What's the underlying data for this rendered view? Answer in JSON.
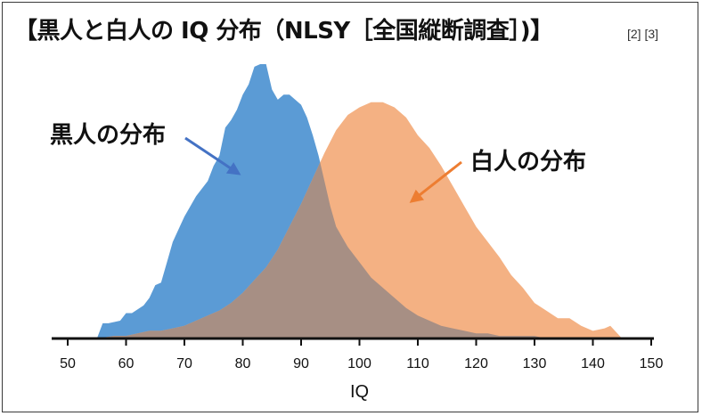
{
  "header": {
    "title": "【黒人と白人の IQ 分布（NLSY［全国縦断調査］)】",
    "references": "[2] [3]"
  },
  "chart_data": {
    "type": "area",
    "xlabel": "IQ",
    "xlim": [
      50,
      150
    ],
    "xticks": [
      50,
      60,
      70,
      80,
      90,
      100,
      110,
      120,
      130,
      140,
      150
    ],
    "yticks_visible": false,
    "grid": false,
    "series": [
      {
        "name": "黒人の分布",
        "color": "#5b9bd5",
        "x": [
          55,
          56,
          57,
          59,
          60,
          61,
          63,
          64,
          65,
          66,
          67,
          68,
          70,
          72,
          74,
          75,
          76,
          77,
          78,
          79,
          80,
          81,
          82,
          83,
          84,
          85,
          86,
          87,
          88,
          90,
          91,
          92,
          93,
          94,
          95,
          96,
          98,
          100,
          102,
          104,
          106,
          108,
          110,
          112,
          114,
          116,
          118,
          120,
          122,
          124,
          126,
          128,
          130,
          132,
          134,
          136,
          138,
          140,
          142,
          145
        ],
        "values": [
          0,
          6,
          6,
          7,
          10,
          10,
          13,
          16,
          21,
          22,
          30,
          38,
          48,
          56,
          62,
          68,
          72,
          83,
          86,
          90,
          96,
          100,
          107,
          108,
          108,
          98,
          94,
          96,
          96,
          92,
          87,
          80,
          72,
          62,
          52,
          44,
          36,
          30,
          24,
          20,
          16,
          12,
          9,
          7,
          5,
          4,
          3,
          2,
          2,
          1,
          1,
          1,
          1,
          0,
          0,
          0,
          0,
          0,
          0,
          0
        ]
      },
      {
        "name": "白人の分布",
        "color": "#f4b183",
        "x": [
          55,
          58,
          60,
          62,
          64,
          66,
          68,
          70,
          72,
          74,
          76,
          78,
          80,
          82,
          84,
          86,
          88,
          90,
          92,
          94,
          96,
          98,
          100,
          102,
          104,
          106,
          108,
          110,
          112,
          114,
          116,
          118,
          120,
          122,
          124,
          126,
          128,
          130,
          132,
          134,
          136,
          138,
          140,
          142,
          143,
          145
        ],
        "values": [
          0,
          1,
          1,
          2,
          3,
          3,
          4,
          5,
          7,
          9,
          11,
          14,
          18,
          23,
          28,
          35,
          44,
          53,
          63,
          73,
          82,
          88,
          91,
          93,
          93,
          91,
          87,
          80,
          75,
          68,
          60,
          52,
          44,
          38,
          32,
          25,
          20,
          14,
          11,
          8,
          8,
          5,
          3,
          4,
          5,
          0
        ]
      }
    ],
    "overlap_color": "#a78f84",
    "annotations": [
      {
        "text": "黒人の分布",
        "series": "黒人の分布"
      },
      {
        "text": "白人の分布",
        "series": "白人の分布"
      }
    ]
  }
}
